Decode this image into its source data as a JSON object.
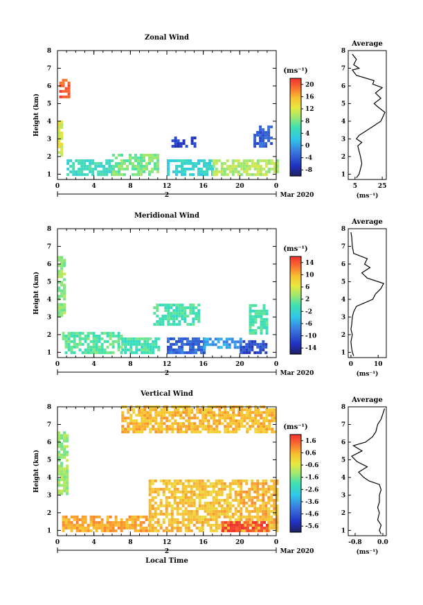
{
  "chart_data": [
    {
      "type": "heatmap",
      "title": "Zonal Wind",
      "ylabel": "Height (km)",
      "xlabel": "",
      "date_label": "Mar 2020",
      "day_label": "2",
      "unit": "(ms⁻¹)",
      "x_ticks": [
        "0",
        "4",
        "8",
        "12",
        "16",
        "20",
        "0"
      ],
      "y_ticks": [
        "1",
        "2",
        "3",
        "4",
        "5",
        "6",
        "7",
        "8"
      ],
      "ylim": [
        0.7,
        8.0
      ],
      "xlim_hours": [
        0,
        24
      ],
      "colorbar": {
        "ticks": [
          "-8",
          "-4",
          "0",
          "4",
          "8",
          "12",
          "16",
          "20"
        ],
        "range": [
          -10,
          22
        ]
      },
      "average": {
        "title": "Average",
        "xlabel": "(ms⁻¹)",
        "x_ticks": [
          "5",
          "25"
        ],
        "xlim": [
          0,
          28
        ],
        "height": [
          0.8,
          1.0,
          1.3,
          1.6,
          2.0,
          2.3,
          2.6,
          2.8,
          3.0,
          3.2,
          3.4,
          3.7,
          4.0,
          4.5,
          4.8,
          5.0,
          5.3,
          5.6,
          5.9,
          6.1,
          6.3,
          6.6,
          6.9,
          7.0,
          7.2,
          7.5,
          7.8
        ],
        "wind": [
          6,
          8,
          9,
          10,
          9,
          8,
          7,
          10,
          6,
          8,
          12,
          18,
          24,
          27,
          22,
          19,
          24,
          20,
          25,
          18,
          19,
          6,
          3,
          8,
          4,
          6,
          3
        ]
      },
      "series": [
        {
          "name": "",
          "hours": [
            0.2,
            1.2
          ],
          "height": [
            5.3,
            6.3
          ],
          "value": 20
        },
        {
          "name": "",
          "hours": [
            0.0,
            0.5
          ],
          "height": [
            2.0,
            4.0
          ],
          "value": 12
        },
        {
          "name": "",
          "hours": [
            1.0,
            6.0
          ],
          "height": [
            0.9,
            1.8
          ],
          "value": 5
        },
        {
          "name": "",
          "hours": [
            6.0,
            11.0
          ],
          "height": [
            0.9,
            2.0
          ],
          "value": 8
        },
        {
          "name": "",
          "hours": [
            12.0,
            17.0
          ],
          "height": [
            0.9,
            1.7
          ],
          "value": 4
        },
        {
          "name": "",
          "hours": [
            17.0,
            24.0
          ],
          "height": [
            0.9,
            1.8
          ],
          "value": 10
        },
        {
          "name": "",
          "hours": [
            12.5,
            15.0
          ],
          "height": [
            2.5,
            3.0
          ],
          "value": -6
        },
        {
          "name": "",
          "hours": [
            21.5,
            23.5
          ],
          "height": [
            2.5,
            3.6
          ],
          "value": -4
        }
      ]
    },
    {
      "type": "heatmap",
      "title": "Meridional Wind",
      "ylabel": "Height (km)",
      "xlabel": "",
      "date_label": "Mar 2020",
      "day_label": "2",
      "unit": "(ms⁻¹)",
      "x_ticks": [
        "0",
        "4",
        "8",
        "12",
        "16",
        "20",
        "0"
      ],
      "y_ticks": [
        "1",
        "2",
        "3",
        "4",
        "5",
        "6",
        "7",
        "8"
      ],
      "ylim": [
        0.7,
        8.0
      ],
      "xlim_hours": [
        0,
        24
      ],
      "colorbar": {
        "ticks": [
          "-14",
          "-10",
          "-6",
          "-2",
          "2",
          "6",
          "10",
          "14"
        ],
        "range": [
          -16,
          16
        ]
      },
      "average": {
        "title": "Average",
        "xlabel": "(ms⁻¹)",
        "x_ticks": [
          "0",
          "10"
        ],
        "xlim": [
          -1,
          13
        ],
        "height": [
          0.8,
          1.0,
          1.3,
          1.6,
          2.0,
          2.3,
          2.6,
          3.0,
          3.3,
          3.6,
          4.0,
          4.3,
          4.6,
          4.9,
          5.2,
          5.5,
          5.8,
          6.0,
          6.3,
          6.6,
          7.0,
          7.5,
          7.8
        ],
        "wind": [
          1,
          0.5,
          0.2,
          0,
          0.5,
          0,
          0.3,
          0.5,
          1,
          2,
          8,
          9,
          11,
          12,
          6,
          4,
          7,
          5,
          6,
          1,
          0.5,
          0.3,
          0
        ]
      },
      "series": [
        {
          "name": "",
          "hours": [
            0.0,
            0.8
          ],
          "height": [
            3.0,
            6.3
          ],
          "value": 3
        },
        {
          "name": "",
          "hours": [
            0.5,
            7.0
          ],
          "height": [
            0.9,
            2.0
          ],
          "value": 1
        },
        {
          "name": "",
          "hours": [
            7.0,
            11.0
          ],
          "height": [
            0.9,
            1.8
          ],
          "value": 0
        },
        {
          "name": "",
          "hours": [
            10.5,
            15.5
          ],
          "height": [
            2.5,
            3.7
          ],
          "value": 0
        },
        {
          "name": "",
          "hours": [
            12.0,
            16.0
          ],
          "height": [
            0.9,
            1.7
          ],
          "value": -9
        },
        {
          "name": "",
          "hours": [
            16.0,
            20.0
          ],
          "height": [
            1.2,
            1.8
          ],
          "value": -6
        },
        {
          "name": "",
          "hours": [
            20.0,
            23.0
          ],
          "height": [
            0.9,
            1.6
          ],
          "value": -11
        },
        {
          "name": "",
          "hours": [
            21.0,
            23.0
          ],
          "height": [
            2.0,
            3.6
          ],
          "value": 0
        }
      ]
    },
    {
      "type": "heatmap",
      "title": "Vertical Wind",
      "ylabel": "Height (km)",
      "xlabel": "Local Time",
      "date_label": "Mar 2020",
      "day_label": "2",
      "unit": "(ms⁻¹)",
      "x_ticks": [
        "0",
        "4",
        "8",
        "12",
        "16",
        "20",
        "0"
      ],
      "y_ticks": [
        "1",
        "2",
        "3",
        "4",
        "5",
        "6",
        "7",
        "8"
      ],
      "ylim": [
        0.7,
        8.0
      ],
      "xlim_hours": [
        0,
        24
      ],
      "colorbar": {
        "ticks": [
          "-5.6",
          "-4.6",
          "-3.6",
          "-2.6",
          "-1.6",
          "-0.6",
          "0.6",
          "1.6"
        ],
        "range": [
          -6,
          2
        ]
      },
      "average": {
        "title": "Average",
        "xlabel": "(ms⁻¹)",
        "x_ticks": [
          "-0.8",
          "0.0"
        ],
        "xlim": [
          -1.0,
          0.1
        ],
        "height": [
          0.8,
          1.0,
          1.3,
          1.6,
          2.0,
          2.3,
          2.6,
          3.0,
          3.3,
          3.6,
          3.8,
          4.0,
          4.3,
          4.6,
          4.9,
          5.2,
          5.5,
          5.8,
          6.0,
          6.3,
          6.6,
          7.0,
          7.3,
          7.6,
          7.9
        ],
        "wind": [
          -0.05,
          -0.1,
          -0.05,
          -0.15,
          -0.1,
          -0.15,
          -0.1,
          -0.1,
          -0.05,
          -0.1,
          -0.4,
          -0.55,
          -0.7,
          -0.45,
          -0.75,
          -0.9,
          -0.6,
          -0.85,
          -0.5,
          -0.3,
          -0.2,
          -0.15,
          -0.05,
          0.0,
          0.05
        ]
      },
      "series": [
        {
          "name": "",
          "hours": [
            0.0,
            1.0
          ],
          "height": [
            3.0,
            6.5
          ],
          "value": -1.2
        },
        {
          "name": "",
          "hours": [
            0.5,
            10.0
          ],
          "height": [
            0.9,
            1.8
          ],
          "value": 0.6
        },
        {
          "name": "",
          "hours": [
            10.0,
            20.0
          ],
          "height": [
            0.9,
            3.8
          ],
          "value": 0.3
        },
        {
          "name": "",
          "hours": [
            20.0,
            24.0
          ],
          "height": [
            0.9,
            3.8
          ],
          "value": 0.5
        },
        {
          "name": "",
          "hours": [
            7.0,
            24.0
          ],
          "height": [
            6.5,
            8.0
          ],
          "value": 0.4
        },
        {
          "name": "",
          "hours": [
            18.0,
            23.0
          ],
          "height": [
            0.9,
            1.4
          ],
          "value": 1.6
        }
      ]
    }
  ]
}
